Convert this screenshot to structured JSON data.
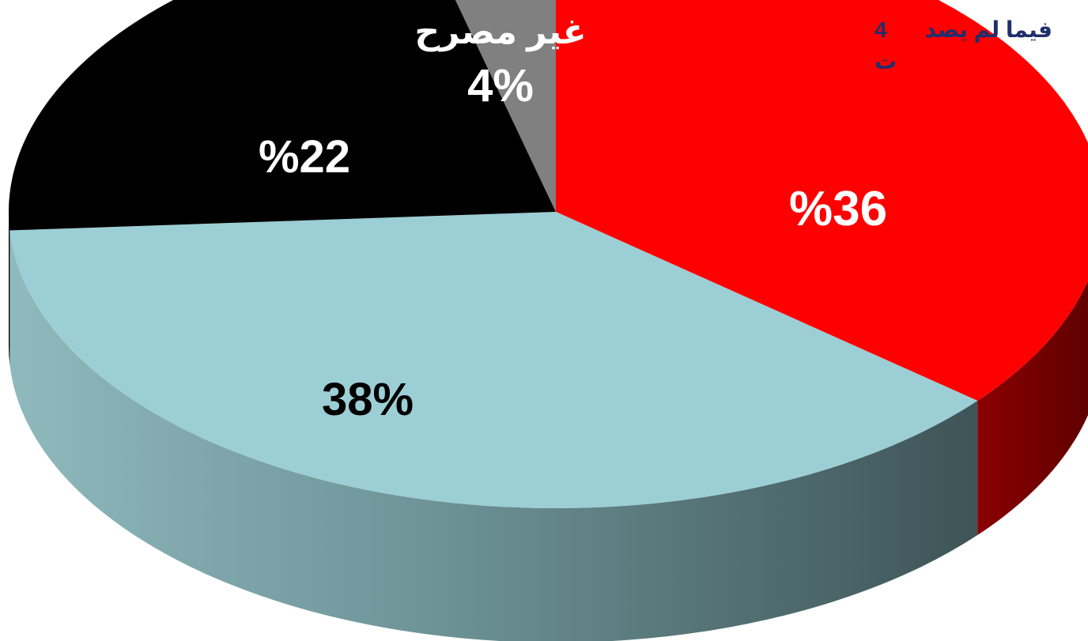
{
  "chart_data": {
    "type": "pie",
    "title": "",
    "slices": [
      {
        "label": "%36",
        "value": 36,
        "color": "#ff0000",
        "side_color": "#7a0000",
        "label_color": "#ffffff"
      },
      {
        "label": "38%",
        "value": 38,
        "color": "#9ccfd5",
        "side_color": "#5a7d81",
        "label_color": "#000000"
      },
      {
        "label": "%22",
        "value": 22,
        "color": "#000000",
        "side_color": "#000000",
        "label_color": "#ffffff"
      },
      {
        "label": "4%",
        "name": "غير مصرح",
        "value": 4,
        "color": "#808080",
        "side_color": "#555555",
        "label_color": "#ffffff"
      }
    ],
    "start_angle_deg": -90,
    "direction": "clockwise",
    "style": "3d"
  },
  "corner_note": {
    "line1_text": "فيما لم يصد",
    "line1_number": "4",
    "line2_text": "ت"
  }
}
